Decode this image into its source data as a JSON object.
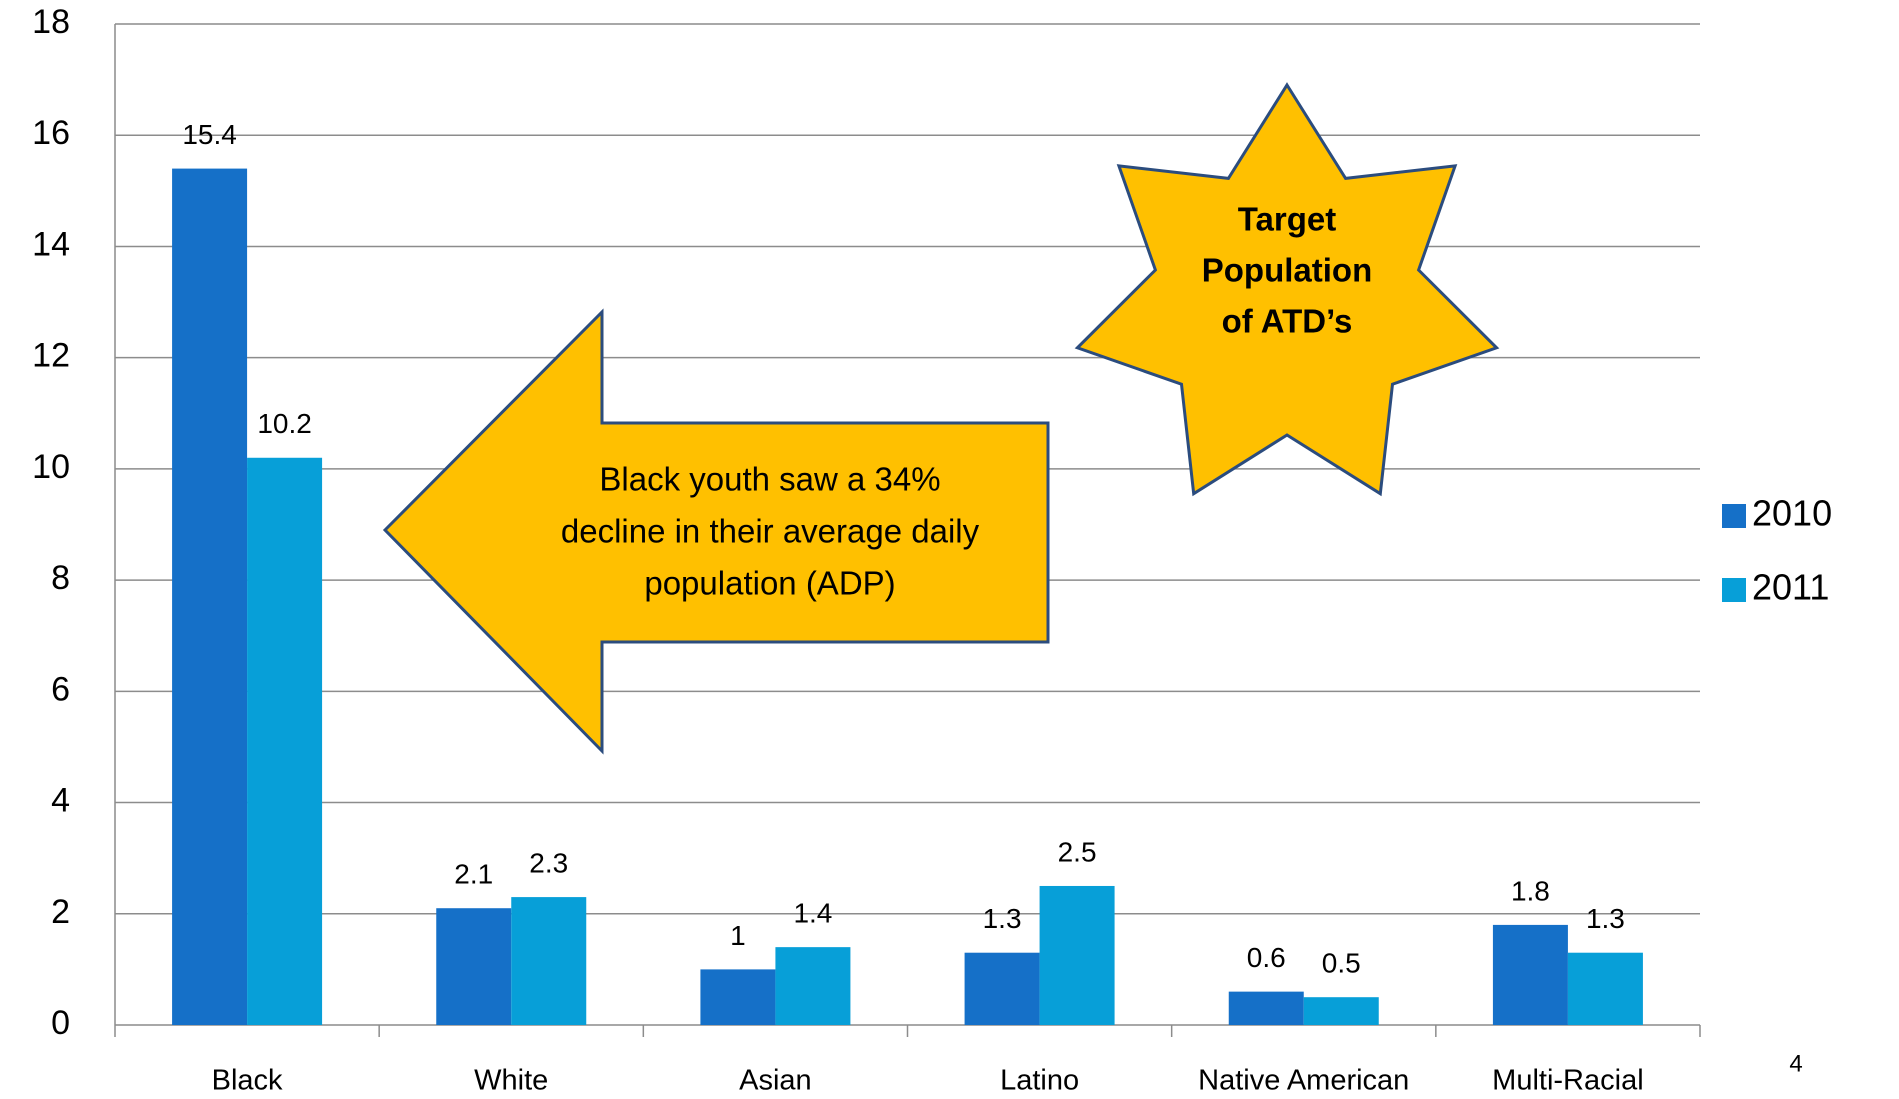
{
  "chart_data": {
    "type": "bar",
    "categories": [
      "Black",
      "White",
      "Asian",
      "Latino",
      "Native American",
      "Multi-Racial"
    ],
    "series": [
      {
        "name": "2010",
        "color": "#1570c8",
        "values": [
          15.4,
          2.1,
          1,
          1.3,
          0.6,
          1.8
        ]
      },
      {
        "name": "2011",
        "color": "#079fd8",
        "values": [
          10.2,
          2.3,
          1.4,
          2.5,
          0.5,
          1.3
        ]
      }
    ],
    "ylim": [
      0,
      18
    ],
    "yticks": [
      0,
      2,
      4,
      6,
      8,
      10,
      12,
      14,
      16,
      18
    ],
    "grid": true,
    "legend": "right",
    "annotations": {
      "arrow_text": [
        "Black youth saw a 34%",
        "decline in their average daily",
        "population (ADP)"
      ],
      "star_text": [
        "Target",
        "Population",
        "of ATD’s"
      ]
    },
    "page_number": "4"
  }
}
